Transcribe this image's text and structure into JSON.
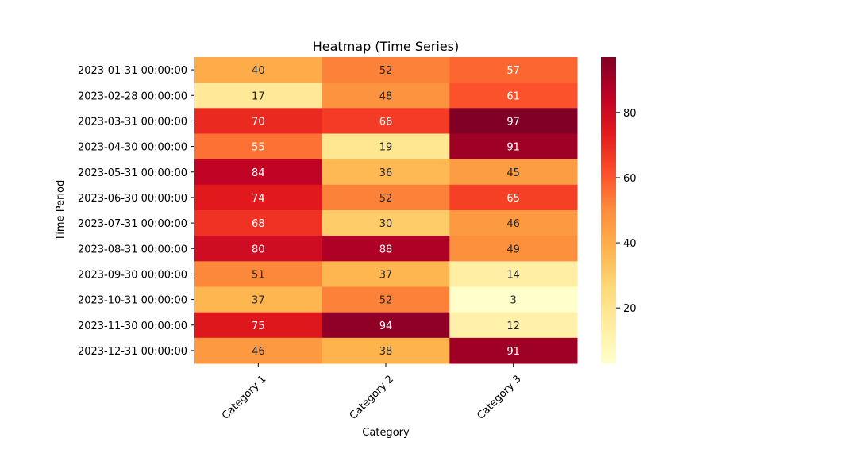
{
  "chart_data": {
    "type": "heatmap",
    "title": "Heatmap (Time Series)",
    "xlabel": "Category",
    "ylabel": "Time Period",
    "x_categories": [
      "Category 1",
      "Category 2",
      "Category 3"
    ],
    "y_categories": [
      "2023-01-31 00:00:00",
      "2023-02-28 00:00:00",
      "2023-03-31 00:00:00",
      "2023-04-30 00:00:00",
      "2023-05-31 00:00:00",
      "2023-06-30 00:00:00",
      "2023-07-31 00:00:00",
      "2023-08-31 00:00:00",
      "2023-09-30 00:00:00",
      "2023-10-31 00:00:00",
      "2023-11-30 00:00:00",
      "2023-12-31 00:00:00"
    ],
    "values": [
      [
        40,
        52,
        57
      ],
      [
        17,
        48,
        61
      ],
      [
        70,
        66,
        97
      ],
      [
        55,
        19,
        91
      ],
      [
        84,
        36,
        45
      ],
      [
        74,
        52,
        65
      ],
      [
        68,
        30,
        46
      ],
      [
        80,
        88,
        49
      ],
      [
        51,
        37,
        14
      ],
      [
        37,
        52,
        3
      ],
      [
        75,
        94,
        12
      ],
      [
        46,
        38,
        91
      ]
    ],
    "colormap": "YlOrRd",
    "vmin": 3,
    "vmax": 97,
    "colorbar_ticks": [
      20,
      40,
      60,
      80
    ],
    "annotations": true
  }
}
